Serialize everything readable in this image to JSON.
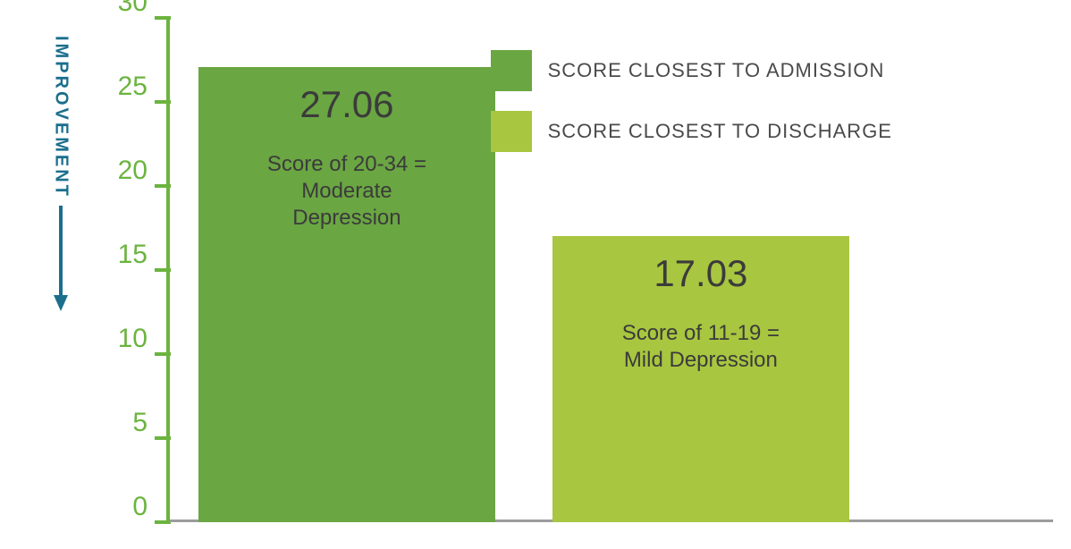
{
  "chart": {
    "type": "bar",
    "background_color": "#ffffff",
    "axis_color": "#6bb43f",
    "axis_line_width": 4,
    "xaxis_color": "#9c9c9c",
    "xaxis_line_width": 3,
    "tick_color": "#6bb43f",
    "ylim": [
      0,
      30
    ],
    "ytick_step": 5,
    "yticks": [
      0,
      5,
      10,
      15,
      20,
      25,
      30
    ],
    "tick_label_fontsize": 30,
    "tick_label_color": "#6bb43f",
    "improvement_label": "IMPROVEMENT",
    "improvement_label_color": "#1b6f8c",
    "improvement_label_fontsize": 20,
    "improvement_arrow_color": "#1b6f8c",
    "bars": [
      {
        "value": 27.06,
        "value_label": "27.06",
        "desc_line1": "Score of 20-34 =",
        "desc_line2": "Moderate",
        "desc_line3": "Depression",
        "color": "#6aa642",
        "left_pct": 4,
        "width_pct": 41
      },
      {
        "value": 17.03,
        "value_label": "17.03",
        "desc_line1": "Score of 11-19 =",
        "desc_line2": "Mild Depression",
        "desc_line3": "",
        "color": "#a8c63f",
        "left_pct": 53,
        "width_pct": 41
      }
    ],
    "value_fontsize": 42,
    "desc_fontsize": 24,
    "text_color": "#3b3b3b",
    "legend": {
      "items": [
        {
          "color": "#6aa642",
          "label": "SCORE CLOSEST TO ADMISSION"
        },
        {
          "color": "#a8c63f",
          "label": "SCORE CLOSEST TO DISCHARGE"
        }
      ],
      "swatch_size": 46,
      "label_fontsize": 22,
      "label_color": "#4a4a4a"
    }
  }
}
